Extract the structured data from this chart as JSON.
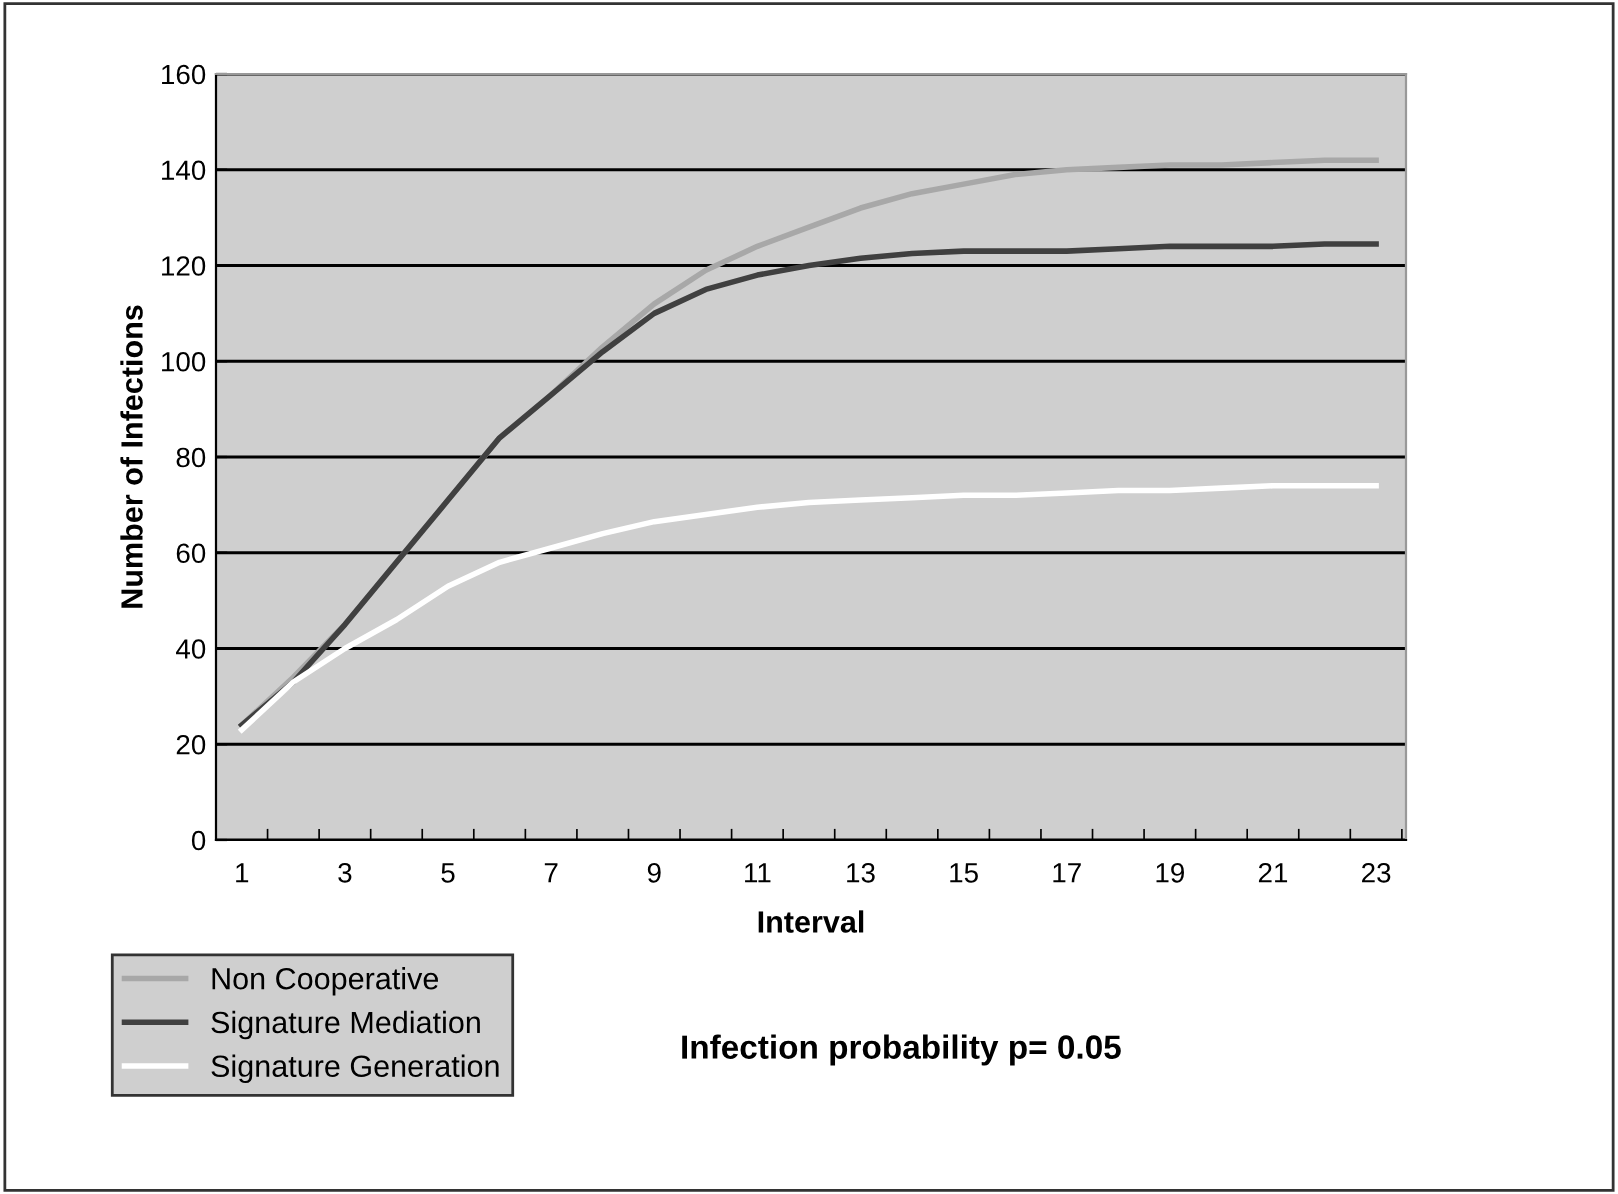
{
  "chart_data": {
    "type": "line",
    "xlabel": "Interval",
    "ylabel": "Number of Infections",
    "categories": [
      "1",
      null,
      "3",
      null,
      "5",
      null,
      "7",
      null,
      "9",
      null,
      "11",
      null,
      "13",
      null,
      "15",
      null,
      "17",
      null,
      "19",
      null,
      "21",
      null,
      "23"
    ],
    "ylim": [
      0,
      160
    ],
    "yticks": [
      0,
      20,
      40,
      60,
      80,
      100,
      120,
      140,
      160
    ],
    "grid": "y",
    "legend": "bottom left",
    "marker": "none",
    "line_style": "solid",
    "annotations": [
      "Infection probability p= 0.05"
    ],
    "series": [
      {
        "name": "Non Cooperative",
        "color": "#a8a8a8",
        "values": [
          24,
          34,
          45,
          58,
          71,
          84,
          93,
          103,
          112,
          119,
          124,
          128,
          132,
          135,
          137,
          139,
          140,
          140.5,
          141,
          141,
          141.5,
          142,
          142
        ]
      },
      {
        "name": "Signature Mediation",
        "color": "#404040",
        "values": [
          24,
          33,
          45,
          58,
          71,
          84,
          93,
          102,
          110,
          115,
          118,
          120,
          121.5,
          122.5,
          123,
          123,
          123,
          123.5,
          124,
          124,
          124,
          124.5,
          124.5
        ]
      },
      {
        "name": "Signature Generation",
        "color": "#ffffff",
        "values": [
          23,
          33,
          40,
          46,
          53,
          58,
          61,
          64,
          66.5,
          68,
          69.5,
          70.5,
          71,
          71.5,
          72,
          72,
          72.5,
          73,
          73,
          73.5,
          74,
          74,
          74
        ]
      }
    ]
  }
}
